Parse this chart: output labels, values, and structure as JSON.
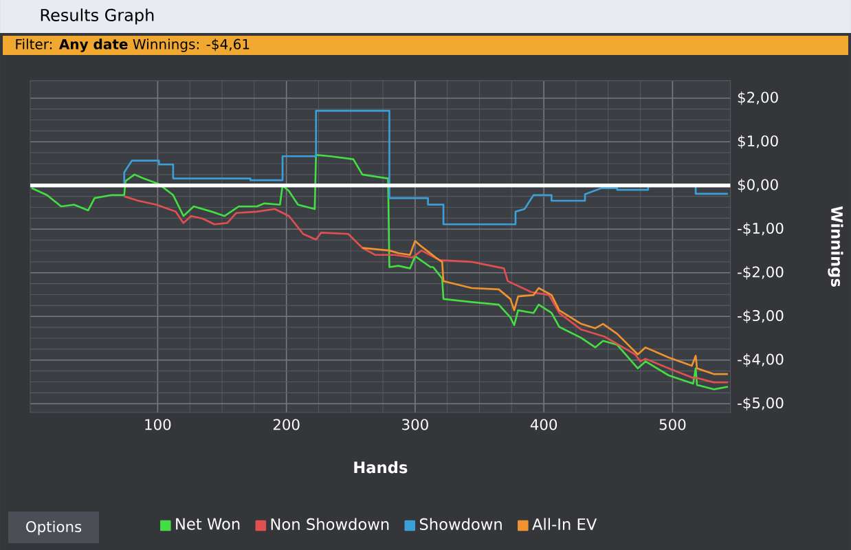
{
  "chart_data": {
    "type": "line",
    "title": "Results Graph",
    "subtitle": "Filter: **Any date** Winnings: -$4,61",
    "xlabel": "Hands",
    "ylabel": "Winnings",
    "annotations": [
      "Options"
    ],
    "xlim": [
      1,
      545
    ],
    "ylim": [
      -5.2,
      2.4
    ],
    "xticks": [
      100,
      200,
      300,
      400,
      500
    ],
    "yticks": [
      {
        "value": 2,
        "label": "$2,00"
      },
      {
        "value": 1,
        "label": "$1,00"
      },
      {
        "value": 0,
        "label": "$0,00"
      },
      {
        "value": -1,
        "label": "-$1,00"
      },
      {
        "value": -2,
        "label": "-$2,00"
      },
      {
        "value": -3,
        "label": "-$3,00"
      },
      {
        "value": -4,
        "label": "-$4,00"
      },
      {
        "value": -5,
        "label": "-$5,00"
      }
    ],
    "grid": true,
    "legend": "bottom",
    "line_style": "solid",
    "marker": "none",
    "ref_lines": [
      {
        "axis": "y",
        "value": 0,
        "color": "#ffffff"
      }
    ],
    "series": [
      {
        "name": "Net Won",
        "color": "#44dd44",
        "x": [
          2,
          14,
          25,
          35,
          46,
          51,
          64,
          74,
          75,
          82,
          89,
          101,
          112,
          120,
          128,
          142,
          152,
          163,
          177,
          183,
          195,
          197,
          202,
          209,
          222,
          223,
          234,
          252,
          259,
          279,
          280,
          287,
          296,
          300,
          312,
          314,
          321,
          322,
          344,
          365,
          374,
          377,
          380,
          392,
          396,
          406,
          412,
          429,
          440,
          446,
          457,
          473,
          479,
          497,
          516,
          518,
          519,
          532,
          543
        ],
        "values": [
          -0.06,
          -0.22,
          -0.48,
          -0.44,
          -0.57,
          -0.29,
          -0.22,
          -0.22,
          0.1,
          0.25,
          0.16,
          0.03,
          -0.22,
          -0.7,
          -0.48,
          -0.6,
          -0.7,
          -0.48,
          -0.48,
          -0.41,
          -0.44,
          0,
          -0.13,
          -0.44,
          -0.54,
          0.7,
          0.67,
          0.6,
          0.25,
          0.16,
          -1.87,
          -1.84,
          -1.9,
          -1.62,
          -1.87,
          -1.87,
          -2.13,
          -2.6,
          -2.67,
          -2.73,
          -3.02,
          -3.2,
          -2.86,
          -2.92,
          -2.73,
          -2.92,
          -3.24,
          -3.49,
          -3.71,
          -3.56,
          -3.65,
          -4.19,
          -4.03,
          -4.35,
          -4.54,
          -4.19,
          -4.57,
          -4.67,
          -4.61
        ]
      },
      {
        "name": "Non Showdown",
        "color": "#e05050",
        "x": [
          74,
          85,
          99,
          114,
          120,
          126,
          135,
          144,
          154,
          161,
          177,
          191,
          202,
          213,
          223,
          227,
          248,
          259,
          269,
          284,
          298,
          305,
          319,
          344,
          369,
          372,
          390,
          404,
          412,
          429,
          447,
          471,
          475,
          479,
          497,
          516,
          519,
          532,
          543
        ],
        "values": [
          -0.25,
          -0.35,
          -0.44,
          -0.6,
          -0.86,
          -0.7,
          -0.76,
          -0.89,
          -0.86,
          -0.63,
          -0.6,
          -0.54,
          -0.7,
          -1.11,
          -1.24,
          -1.08,
          -1.11,
          -1.43,
          -1.59,
          -1.59,
          -1.65,
          -1.49,
          -1.71,
          -1.75,
          -1.9,
          -2.19,
          -2.44,
          -2.51,
          -2.92,
          -3.3,
          -3.46,
          -3.87,
          -4.03,
          -3.97,
          -4.19,
          -4.41,
          -4.41,
          -4.51,
          -4.51
        ]
      },
      {
        "name": "Showdown",
        "color": "#3b9fd8",
        "x": [
          1,
          74,
          74,
          80,
          101,
          101,
          112,
          112,
          172,
          172,
          197,
          197,
          223,
          223,
          280,
          280,
          310,
          310,
          322,
          322,
          378,
          378,
          385,
          392,
          406,
          406,
          432,
          432,
          445,
          457,
          457,
          481,
          481,
          518,
          518,
          543
        ],
        "values": [
          0,
          0,
          0.3,
          0.57,
          0.57,
          0.48,
          0.48,
          0.16,
          0.16,
          0.12,
          0.12,
          0.67,
          0.67,
          1.71,
          1.71,
          -0.29,
          -0.29,
          -0.44,
          -0.44,
          -0.89,
          -0.89,
          -0.6,
          -0.54,
          -0.22,
          -0.22,
          -0.35,
          -0.35,
          -0.2,
          -0.06,
          -0.06,
          -0.1,
          -0.1,
          0,
          0,
          -0.19,
          -0.19
        ]
      },
      {
        "name": "All-In EV",
        "color": "#f0922e",
        "x": [
          259,
          280,
          287,
          296,
          300,
          305,
          316,
          321,
          322,
          326,
          344,
          365,
          374,
          377,
          380,
          392,
          396,
          406,
          412,
          429,
          440,
          446,
          457,
          473,
          479,
          497,
          515,
          518,
          519,
          532,
          543
        ],
        "values": [
          -1.43,
          -1.49,
          -1.55,
          -1.59,
          -1.27,
          -1.4,
          -1.65,
          -1.75,
          -2.19,
          -2.22,
          -2.35,
          -2.38,
          -2.6,
          -2.86,
          -2.54,
          -2.51,
          -2.35,
          -2.51,
          -2.86,
          -3.17,
          -3.27,
          -3.17,
          -3.4,
          -3.87,
          -3.71,
          -3.94,
          -4.13,
          -3.9,
          -4.19,
          -4.32,
          -4.32
        ]
      }
    ]
  }
}
